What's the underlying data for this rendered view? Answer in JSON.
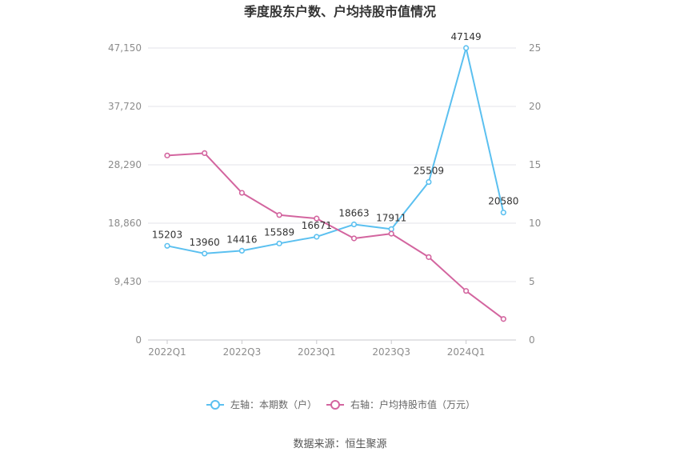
{
  "chart_data": {
    "type": "line",
    "title": "季度股东户数、户均持股市值情况",
    "categories": [
      "2022Q1",
      "2022Q2",
      "2022Q3",
      "2022Q4",
      "2023Q1",
      "2023Q2",
      "2023Q3",
      "2023Q4",
      "2024Q1",
      "2024Q2"
    ],
    "x_tick_labels": [
      "2022Q1",
      "2022Q3",
      "2023Q1",
      "2023Q3",
      "2024Q1"
    ],
    "left_axis": {
      "ticks": [
        "0",
        "9,430",
        "18,860",
        "28,290",
        "37,720",
        "47,150"
      ],
      "range": [
        0,
        47150
      ]
    },
    "right_axis": {
      "ticks": [
        "0",
        "5",
        "10",
        "15",
        "20",
        "25"
      ],
      "range": [
        0,
        25
      ]
    },
    "series": [
      {
        "name": "左轴：本期数（户）",
        "axis": "left",
        "color": "#5bc0f0",
        "values": [
          15203,
          13960,
          14416,
          15589,
          16671,
          18663,
          17911,
          25509,
          47149,
          20580
        ],
        "labels": [
          "15203",
          "13960",
          "14416",
          "15589",
          "16671",
          "18663",
          "17911",
          "25509",
          "47149",
          "20580"
        ]
      },
      {
        "name": "右轴：户均持股市值（万元）",
        "axis": "right",
        "color": "#d3659f",
        "values": [
          15.8,
          16.0,
          12.6,
          10.7,
          10.4,
          8.7,
          9.1,
          7.1,
          4.2,
          1.8
        ]
      }
    ],
    "legend_position": "bottom",
    "grid": true
  },
  "source": "数据来源：恒生聚源"
}
